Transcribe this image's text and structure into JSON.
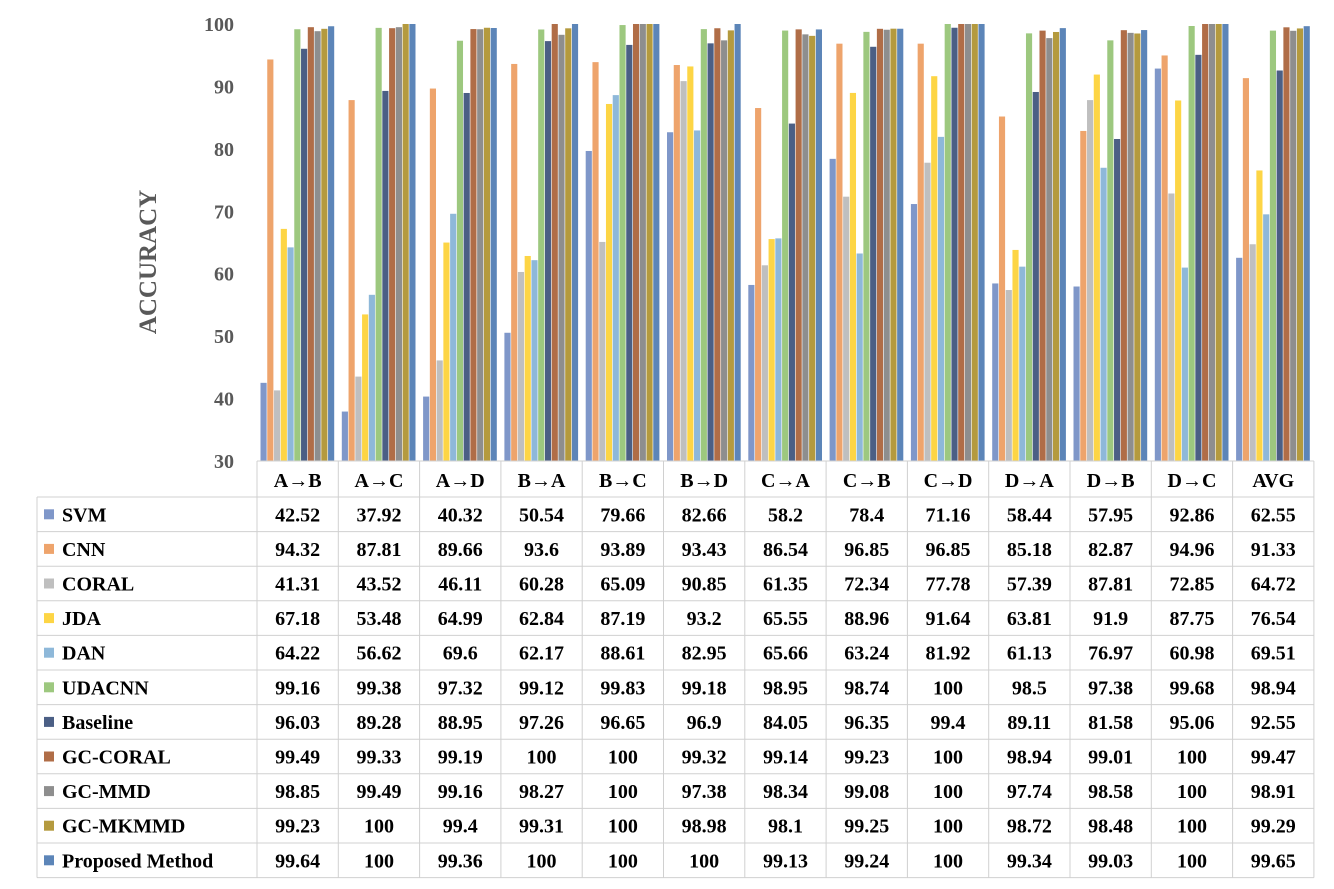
{
  "chart_data": {
    "type": "bar",
    "ylabel": "ACCURACY",
    "ylim": [
      30,
      100
    ],
    "yticks": [
      30,
      40,
      50,
      60,
      70,
      80,
      90,
      100
    ],
    "grid": false,
    "legend": "data-table",
    "categories": [
      "A→B",
      "A→C",
      "A→D",
      "B→A",
      "B→C",
      "B→D",
      "C→A",
      "C→B",
      "C→D",
      "D→A",
      "D→B",
      "D→C",
      "AVG"
    ],
    "series": [
      {
        "name": "SVM",
        "color": "#7f97c9",
        "values": [
          42.52,
          37.92,
          40.32,
          50.54,
          79.66,
          82.66,
          58.2,
          78.4,
          71.16,
          58.44,
          57.95,
          92.86,
          62.55
        ]
      },
      {
        "name": "CNN",
        "color": "#eea46c",
        "values": [
          94.32,
          87.81,
          89.66,
          93.6,
          93.89,
          93.43,
          86.54,
          96.85,
          96.85,
          85.18,
          82.87,
          94.96,
          91.33
        ]
      },
      {
        "name": "CORAL",
        "color": "#bfbfbf",
        "values": [
          41.31,
          43.52,
          46.11,
          60.28,
          65.09,
          90.85,
          61.35,
          72.34,
          77.78,
          57.39,
          87.81,
          72.85,
          64.72
        ]
      },
      {
        "name": "JDA",
        "color": "#fdd545",
        "values": [
          67.18,
          53.48,
          64.99,
          62.84,
          87.19,
          93.2,
          65.55,
          88.96,
          91.64,
          63.81,
          91.9,
          87.75,
          76.54
        ]
      },
      {
        "name": "DAN",
        "color": "#8eb8d9",
        "values": [
          64.22,
          56.62,
          69.6,
          62.17,
          88.61,
          82.95,
          65.66,
          63.24,
          81.92,
          61.13,
          76.97,
          60.98,
          69.51
        ]
      },
      {
        "name": "UDACNN",
        "color": "#9dc87f",
        "values": [
          99.16,
          99.38,
          97.32,
          99.12,
          99.83,
          99.18,
          98.95,
          98.74,
          100,
          98.5,
          97.38,
          99.68,
          98.94
        ]
      },
      {
        "name": "Baseline",
        "color": "#4b5f85",
        "values": [
          96.03,
          89.28,
          88.95,
          97.26,
          96.65,
          96.9,
          84.05,
          96.35,
          99.4,
          89.11,
          81.58,
          95.06,
          92.55
        ]
      },
      {
        "name": "GC-CORAL",
        "color": "#b06d47",
        "values": [
          99.49,
          99.33,
          99.19,
          100,
          100,
          99.32,
          99.14,
          99.23,
          100,
          98.94,
          99.01,
          100,
          99.47
        ]
      },
      {
        "name": "GC-MMD",
        "color": "#8e8e8e",
        "values": [
          98.85,
          99.49,
          99.16,
          98.27,
          100,
          97.38,
          98.34,
          99.08,
          100,
          97.74,
          98.58,
          100,
          98.91
        ]
      },
      {
        "name": "GC-MKMMD",
        "color": "#b49a3e",
        "values": [
          99.23,
          100,
          99.4,
          99.31,
          100,
          98.98,
          98.1,
          99.25,
          100,
          98.72,
          98.48,
          100,
          99.29
        ]
      },
      {
        "name": "Proposed Method",
        "color": "#5c85b8",
        "values": [
          99.64,
          100,
          99.36,
          100,
          100,
          100,
          99.13,
          99.24,
          100,
          99.34,
          99.03,
          100,
          99.65
        ]
      }
    ]
  }
}
